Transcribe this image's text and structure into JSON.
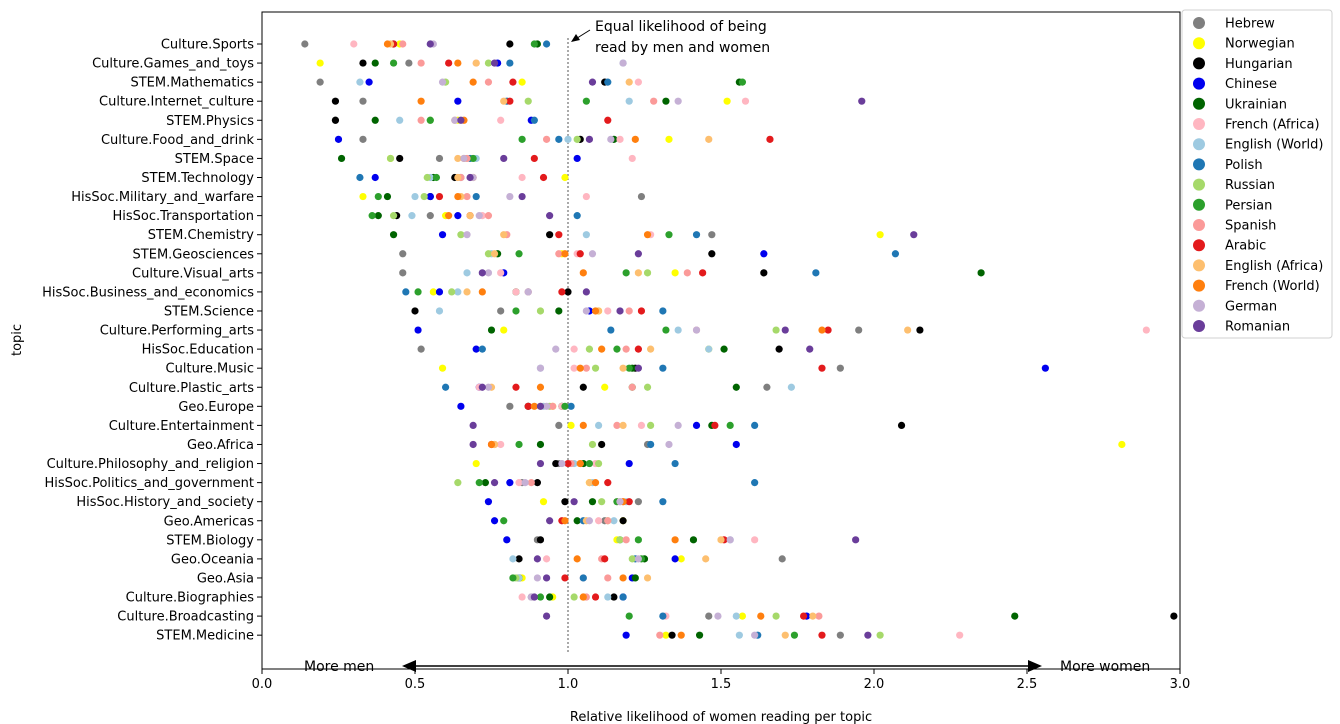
{
  "chart_data": {
    "type": "scatter",
    "title": "",
    "xlabel": "Relative likelihood of women reading per topic",
    "ylabel": "topic",
    "xlim": [
      0.0,
      3.0
    ],
    "x_ticks": [
      "0.0",
      "0.5",
      "1.0",
      "1.5",
      "2.0",
      "2.5",
      "3.0"
    ],
    "grid": false,
    "legend_position": "top-right",
    "reference_line_x": 1.0,
    "annotation": {
      "line1": "Equal likelihood of being",
      "line2": "read by men and women"
    },
    "direction_labels": {
      "left": "More men",
      "right": "More women"
    },
    "topics": [
      "Culture.Sports",
      "Culture.Games_and_toys",
      "STEM.Mathematics",
      "Culture.Internet_culture",
      "STEM.Physics",
      "Culture.Food_and_drink",
      "STEM.Space",
      "STEM.Technology",
      "HisSoc.Military_and_warfare",
      "HisSoc.Transportation",
      "STEM.Chemistry",
      "STEM.Geosciences",
      "Culture.Visual_arts",
      "HisSoc.Business_and_economics",
      "STEM.Science",
      "Culture.Performing_arts",
      "HisSoc.Education",
      "Culture.Music",
      "Culture.Plastic_arts",
      "Geo.Europe",
      "Culture.Entertainment",
      "Geo.Africa",
      "Culture.Philosophy_and_religion",
      "HisSoc.Politics_and_government",
      "HisSoc.History_and_society",
      "Geo.Americas",
      "STEM.Biology",
      "Geo.Oceania",
      "Geo.Asia",
      "Culture.Biographies",
      "Culture.Broadcasting",
      "STEM.Medicine"
    ],
    "series": [
      {
        "name": "Hebrew",
        "color": "#7f7f7f",
        "values": [
          0.14,
          0.48,
          0.19,
          0.33,
          0.24,
          0.33,
          0.58,
          0.65,
          1.24,
          0.55,
          1.47,
          0.46,
          0.46,
          0.87,
          0.78,
          1.95,
          0.52,
          1.89,
          1.65,
          0.81,
          0.97,
          1.26,
          0.97,
          0.85,
          1.23,
          1.12,
          0.9,
          1.7,
          0.84,
          0.88,
          1.46,
          1.89
        ]
      },
      {
        "name": "Norwegian",
        "color": "#ffff00",
        "values": [
          0.45,
          0.19,
          0.85,
          1.52,
          0.64,
          1.33,
          0.42,
          0.99,
          0.33,
          0.6,
          2.02,
          0.98,
          1.35,
          0.56,
          1.1,
          0.79,
          1.46,
          0.59,
          1.12,
          0.95,
          1.01,
          2.81,
          0.7,
          1.07,
          0.92,
          1.18,
          1.16,
          1.37,
          0.85,
          0.95,
          1.57,
          1.32
        ]
      },
      {
        "name": "Hungarian",
        "color": "#000000",
        "values": [
          0.81,
          0.33,
          1.12,
          0.24,
          0.24,
          1.04,
          0.45,
          0.63,
          0.55,
          0.44,
          0.94,
          1.47,
          1.64,
          1.0,
          0.5,
          2.15,
          1.69,
          1.22,
          1.05,
          0.87,
          2.09,
          1.11,
          0.96,
          0.9,
          0.99,
          1.18,
          0.91,
          0.84,
          0.84,
          1.15,
          2.98,
          1.34
        ]
      },
      {
        "name": "Chinese",
        "color": "#0000ee",
        "values": [
          0.43,
          0.77,
          0.35,
          0.64,
          0.88,
          0.25,
          1.03,
          0.37,
          0.55,
          0.64,
          0.59,
          1.64,
          0.79,
          0.58,
          1.07,
          0.51,
          0.7,
          2.56,
          0.71,
          0.65,
          1.42,
          1.55,
          1.2,
          0.81,
          0.74,
          0.76,
          0.8,
          1.35,
          1.21,
          1.18,
          1.78,
          1.19
        ]
      },
      {
        "name": "Ukrainian",
        "color": "#006400",
        "values": [
          0.9,
          0.37,
          1.56,
          1.32,
          0.37,
          1.15,
          0.26,
          0.56,
          0.41,
          0.38,
          0.43,
          0.77,
          2.35,
          0.83,
          0.97,
          0.75,
          1.51,
          1.21,
          1.55,
          0.98,
          1.47,
          0.91,
          1.05,
          0.73,
          1.08,
          1.03,
          1.41,
          1.25,
          1.22,
          0.94,
          2.46,
          1.43
        ]
      },
      {
        "name": "French (Africa)",
        "color": "#ffb6c1",
        "values": [
          0.3,
          0.7,
          1.23,
          1.58,
          0.78,
          1.17,
          1.21,
          0.85,
          1.06,
          0.72,
          1.27,
          1.03,
          0.78,
          0.83,
          1.13,
          2.89,
          1.02,
          1.02,
          0.71,
          0.98,
          1.24,
          0.78,
          1.09,
          0.84,
          1.16,
          1.1,
          1.61,
          0.93,
          1.05,
          0.85,
          1.32,
          2.28
        ]
      },
      {
        "name": "English (World)",
        "color": "#9ecae1",
        "values": [
          0.55,
          1.18,
          0.32,
          1.2,
          0.45,
          1.0,
          0.7,
          0.55,
          0.5,
          0.49,
          1.06,
          0.75,
          0.67,
          0.64,
          0.58,
          1.36,
          1.46,
          0.91,
          1.73,
          0.92,
          1.1,
          1.27,
          1.02,
          1.08,
          1.19,
          1.15,
          1.53,
          0.82,
          0.84,
          1.13,
          1.55,
          1.56
        ]
      },
      {
        "name": "Polish",
        "color": "#1f77b4",
        "values": [
          0.93,
          0.81,
          1.13,
          0.8,
          0.89,
          0.97,
          0.68,
          0.32,
          0.7,
          1.03,
          1.42,
          2.07,
          1.81,
          0.47,
          1.31,
          1.14,
          0.72,
          1.31,
          0.6,
          1.01,
          1.61,
          1.27,
          1.35,
          1.61,
          1.31,
          1.05,
          1.17,
          1.22,
          1.05,
          1.18,
          1.31,
          1.62
        ]
      },
      {
        "name": "Russian",
        "color": "#a6d96a",
        "values": [
          0.43,
          0.74,
          0.6,
          0.87,
          0.55,
          1.03,
          0.42,
          0.54,
          0.53,
          0.43,
          0.65,
          0.74,
          1.26,
          0.62,
          0.91,
          1.68,
          1.07,
          1.09,
          1.26,
          0.94,
          1.27,
          1.08,
          1.1,
          0.64,
          1.11,
          1.13,
          1.17,
          1.21,
          0.83,
          1.02,
          1.68,
          2.02
        ]
      },
      {
        "name": "Persian",
        "color": "#2ca02c",
        "values": [
          0.89,
          0.43,
          1.57,
          1.06,
          0.55,
          0.85,
          0.69,
          0.57,
          0.38,
          0.36,
          1.33,
          0.84,
          1.19,
          0.51,
          0.83,
          1.32,
          1.16,
          1.2,
          1.21,
          0.99,
          1.53,
          0.84,
          1.07,
          0.71,
          1.16,
          0.79,
          1.23,
          1.24,
          0.82,
          0.91,
          1.2,
          1.74
        ]
      },
      {
        "name": "Spanish",
        "color": "#fb9a99",
        "values": [
          0.46,
          0.52,
          0.74,
          1.28,
          0.52,
          0.93,
          0.67,
          0.65,
          0.67,
          0.74,
          0.8,
          0.97,
          1.39,
          0.87,
          1.2,
          1.42,
          1.19,
          1.06,
          1.21,
          0.95,
          1.16,
          0.76,
          1.01,
          0.88,
          1.18,
          1.13,
          1.19,
          1.11,
          1.13,
          1.06,
          1.82,
          1.3
        ]
      },
      {
        "name": "Arabic",
        "color": "#e31a1c",
        "values": [
          0.43,
          0.61,
          0.82,
          0.81,
          1.13,
          1.66,
          0.89,
          0.92,
          0.58,
          0.68,
          0.97,
          1.04,
          1.44,
          0.98,
          1.24,
          1.85,
          1.23,
          1.83,
          0.83,
          0.87,
          1.48,
          0.75,
          1.0,
          1.13,
          1.2,
          0.98,
          1.51,
          1.12,
          0.99,
          1.09,
          1.77,
          1.83
        ]
      },
      {
        "name": "English (Africa)",
        "color": "#fdbf6f",
        "values": [
          0.42,
          0.7,
          1.2,
          0.79,
          0.63,
          1.46,
          0.64,
          0.64,
          0.65,
          0.68,
          0.79,
          0.76,
          1.23,
          0.67,
          1.1,
          2.11,
          1.27,
          1.18,
          0.75,
          0.91,
          1.18,
          0.76,
          1.04,
          1.07,
          1.17,
          1.06,
          1.5,
          1.45,
          1.26,
          1.05,
          1.8,
          1.71
        ]
      },
      {
        "name": "French (World)",
        "color": "#ff7f0e",
        "values": [
          0.41,
          0.64,
          0.69,
          0.52,
          0.66,
          1.22,
          0.66,
          0.69,
          0.64,
          0.61,
          1.26,
          0.99,
          1.05,
          0.72,
          1.09,
          1.83,
          1.11,
          1.04,
          0.91,
          0.89,
          1.05,
          0.75,
          1.04,
          1.09,
          1.18,
          0.99,
          1.35,
          1.03,
          1.18,
          1.05,
          1.63,
          1.37
        ]
      },
      {
        "name": "German",
        "color": "#c5b0d5",
        "values": [
          0.56,
          1.18,
          0.59,
          1.36,
          0.63,
          1.14,
          0.66,
          0.69,
          0.81,
          0.71,
          0.67,
          1.08,
          0.74,
          0.87,
          1.06,
          1.42,
          0.96,
          0.91,
          0.74,
          0.93,
          1.36,
          1.33,
          0.98,
          0.86,
          1.17,
          1.07,
          1.53,
          1.23,
          0.9,
          0.88,
          1.49,
          1.61
        ]
      },
      {
        "name": "Romanian",
        "color": "#6a3d9a",
        "values": [
          0.55,
          0.76,
          1.08,
          1.96,
          0.65,
          1.07,
          0.79,
          0.68,
          0.85,
          0.94,
          2.13,
          1.23,
          0.72,
          1.06,
          1.17,
          1.71,
          1.79,
          1.23,
          0.72,
          0.91,
          0.69,
          0.69,
          0.91,
          0.76,
          1.02,
          0.94,
          1.94,
          0.9,
          0.93,
          0.89,
          0.93,
          1.98
        ]
      }
    ]
  }
}
